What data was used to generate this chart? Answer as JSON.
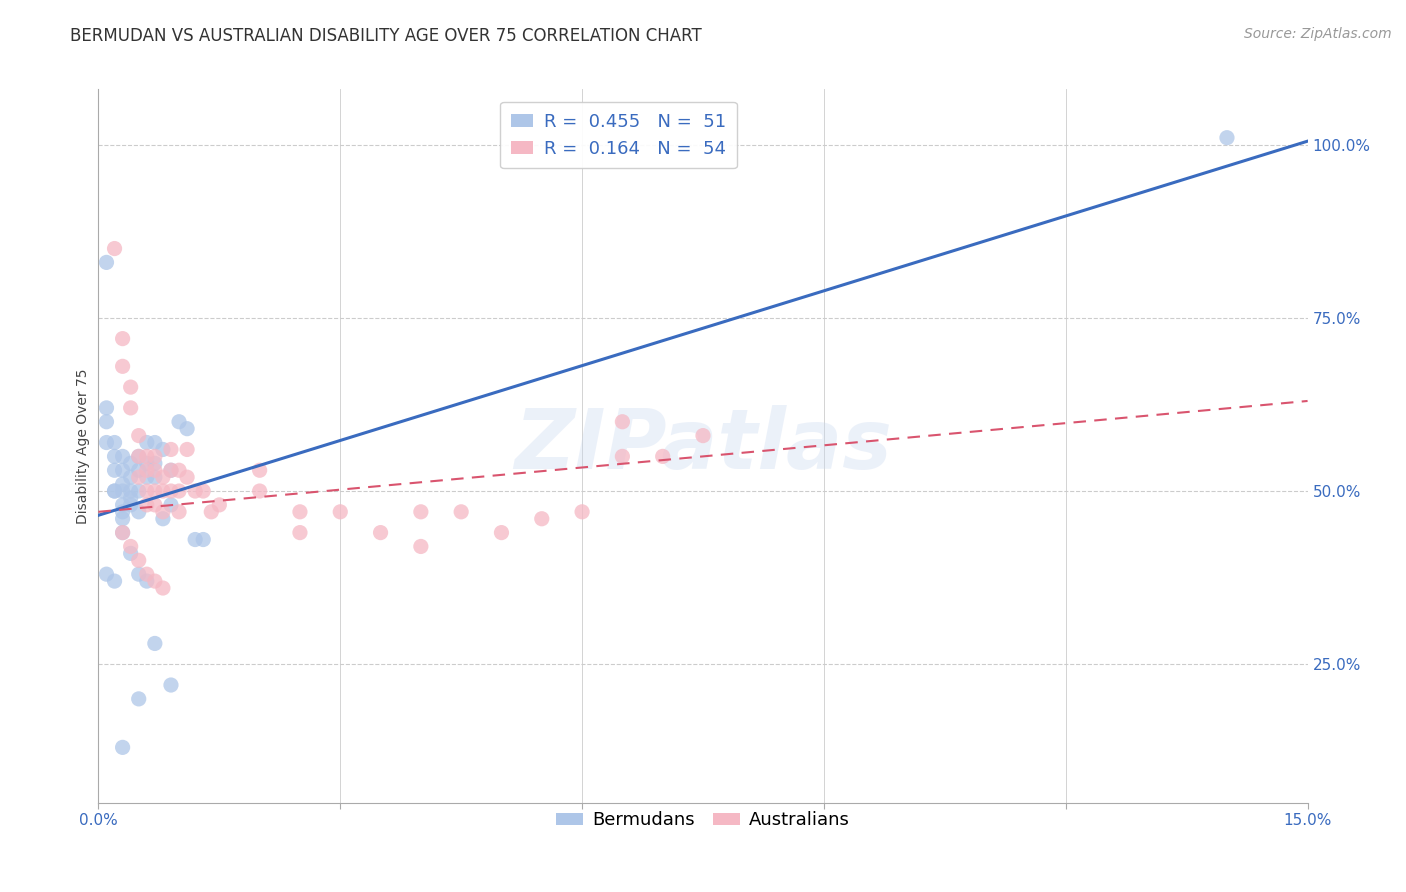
{
  "title": "BERMUDAN VS AUSTRALIAN DISABILITY AGE OVER 75 CORRELATION CHART",
  "source": "Source: ZipAtlas.com",
  "ylabel": "Disability Age Over 75",
  "watermark": "ZIPatlas",
  "xlim": [
    0.0,
    0.15
  ],
  "ylim": [
    0.05,
    1.08
  ],
  "bermudan_color": "#aec6e8",
  "australian_color": "#f5b8c4",
  "bermudan_line_color": "#3a6bbf",
  "australian_line_color": "#d9546e",
  "legend_R_bermuda": "0.455",
  "legend_N_bermuda": "51",
  "legend_R_australia": "0.164",
  "legend_N_australia": "54",
  "bermudans_x": [
    0.001,
    0.001,
    0.001,
    0.001,
    0.002,
    0.002,
    0.002,
    0.002,
    0.002,
    0.003,
    0.003,
    0.003,
    0.003,
    0.003,
    0.003,
    0.003,
    0.004,
    0.004,
    0.004,
    0.004,
    0.004,
    0.005,
    0.005,
    0.005,
    0.005,
    0.006,
    0.006,
    0.006,
    0.007,
    0.007,
    0.007,
    0.008,
    0.008,
    0.009,
    0.009,
    0.01,
    0.011,
    0.012,
    0.013,
    0.001,
    0.002,
    0.003,
    0.004,
    0.005,
    0.006,
    0.007,
    0.009,
    0.003,
    0.005,
    0.14
  ],
  "bermudans_y": [
    0.83,
    0.62,
    0.6,
    0.57,
    0.57,
    0.55,
    0.53,
    0.5,
    0.5,
    0.55,
    0.53,
    0.51,
    0.5,
    0.48,
    0.47,
    0.46,
    0.54,
    0.52,
    0.5,
    0.49,
    0.48,
    0.55,
    0.53,
    0.5,
    0.47,
    0.57,
    0.54,
    0.52,
    0.57,
    0.54,
    0.52,
    0.56,
    0.46,
    0.53,
    0.48,
    0.6,
    0.59,
    0.43,
    0.43,
    0.38,
    0.37,
    0.44,
    0.41,
    0.38,
    0.37,
    0.28,
    0.22,
    0.13,
    0.2,
    1.01
  ],
  "australians_x": [
    0.002,
    0.003,
    0.003,
    0.004,
    0.004,
    0.005,
    0.005,
    0.005,
    0.006,
    0.006,
    0.006,
    0.006,
    0.007,
    0.007,
    0.007,
    0.007,
    0.008,
    0.008,
    0.008,
    0.009,
    0.009,
    0.009,
    0.01,
    0.01,
    0.01,
    0.011,
    0.011,
    0.012,
    0.013,
    0.014,
    0.015,
    0.02,
    0.02,
    0.025,
    0.025,
    0.03,
    0.035,
    0.04,
    0.04,
    0.045,
    0.05,
    0.055,
    0.06,
    0.065,
    0.065,
    0.07,
    0.075,
    0.003,
    0.004,
    0.005,
    0.006,
    0.007,
    0.008
  ],
  "australians_y": [
    0.85,
    0.72,
    0.68,
    0.65,
    0.62,
    0.58,
    0.55,
    0.52,
    0.55,
    0.53,
    0.5,
    0.48,
    0.55,
    0.53,
    0.5,
    0.48,
    0.52,
    0.5,
    0.47,
    0.56,
    0.53,
    0.5,
    0.53,
    0.5,
    0.47,
    0.56,
    0.52,
    0.5,
    0.5,
    0.47,
    0.48,
    0.53,
    0.5,
    0.47,
    0.44,
    0.47,
    0.44,
    0.47,
    0.42,
    0.47,
    0.44,
    0.46,
    0.47,
    0.55,
    0.6,
    0.55,
    0.58,
    0.44,
    0.42,
    0.4,
    0.38,
    0.37,
    0.36
  ],
  "background_color": "#ffffff",
  "grid_color": "#cccccc",
  "title_fontsize": 12,
  "axis_label_fontsize": 10,
  "tick_fontsize": 11,
  "legend_fontsize": 13,
  "source_fontsize": 10,
  "bermudan_line_y0": 0.465,
  "bermudan_line_y1": 1.005,
  "australian_line_y0": 0.47,
  "australian_line_y1": 0.63
}
